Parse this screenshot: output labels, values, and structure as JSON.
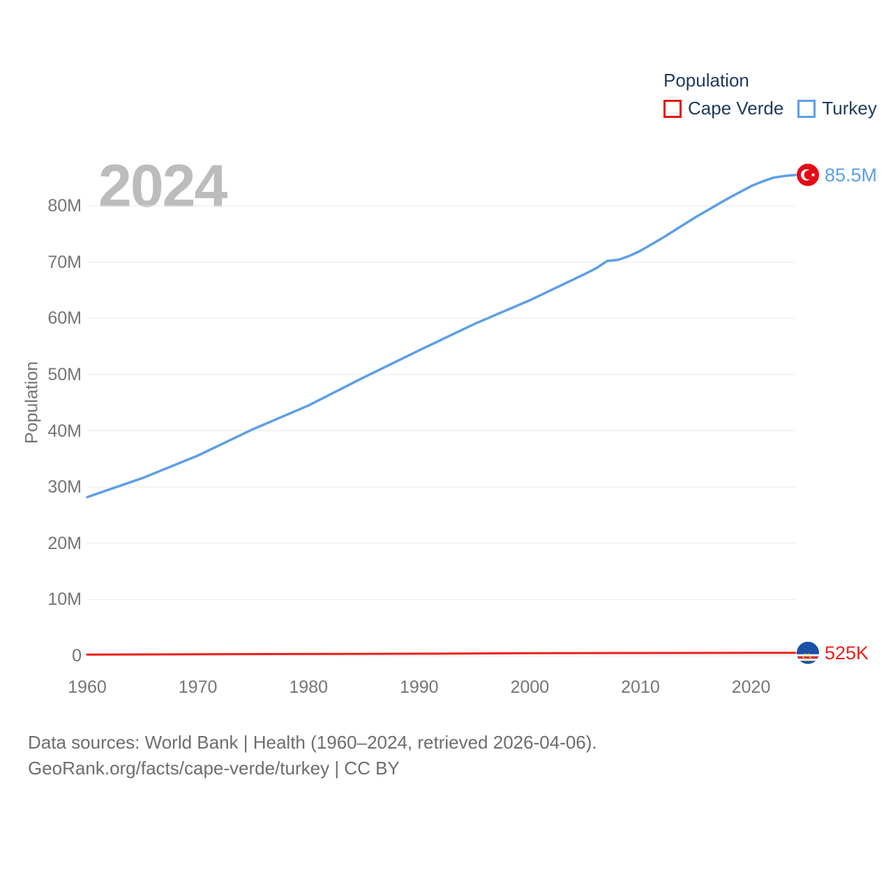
{
  "legend": {
    "title": "Population",
    "items": [
      {
        "label": "Cape Verde",
        "color": "#e3120b"
      },
      {
        "label": "Turkey",
        "color": "#5c9fe6"
      }
    ]
  },
  "watermark": "2024",
  "chart_data": {
    "type": "line",
    "title": "Population",
    "xlabel": "",
    "ylabel": "Population",
    "xlim": [
      1960,
      2024
    ],
    "ylim": [
      0,
      88000000
    ],
    "grid": "horizontal",
    "legend_position": "top-right",
    "x_ticks": [
      1960,
      1970,
      1980,
      1990,
      2000,
      2010,
      2020
    ],
    "y_ticks": [
      {
        "value": 0,
        "label": "0"
      },
      {
        "value": 10000000,
        "label": "10M"
      },
      {
        "value": 20000000,
        "label": "20M"
      },
      {
        "value": 30000000,
        "label": "30M"
      },
      {
        "value": 40000000,
        "label": "40M"
      },
      {
        "value": 50000000,
        "label": "50M"
      },
      {
        "value": 60000000,
        "label": "60M"
      },
      {
        "value": 70000000,
        "label": "70M"
      },
      {
        "value": 80000000,
        "label": "80M"
      }
    ],
    "series": [
      {
        "name": "Turkey",
        "color": "#5c9fe6",
        "line_width": 3.5,
        "flag_icon": "turkey-flag",
        "end_label": "85.5M",
        "end_value": 85500000,
        "x": [
          1960,
          1965,
          1970,
          1975,
          1980,
          1985,
          1990,
          1995,
          2000,
          2005,
          2006,
          2007,
          2008,
          2009,
          2010,
          2012,
          2015,
          2018,
          2020,
          2021,
          2022,
          2023,
          2024
        ],
        "y": [
          28200000,
          31600000,
          35600000,
          40300000,
          44500000,
          49500000,
          54300000,
          59000000,
          63200000,
          67900000,
          68900000,
          70200000,
          70400000,
          71100000,
          72000000,
          74300000,
          78000000,
          81400000,
          83500000,
          84300000,
          85000000,
          85300000,
          85500000
        ]
      },
      {
        "name": "Cape Verde",
        "color": "#ec201a",
        "line_width": 3,
        "flag_icon": "cape-verde-flag",
        "end_label": "525K",
        "end_value": 525000,
        "x": [
          1960,
          1970,
          1980,
          1990,
          2000,
          2010,
          2020,
          2024
        ],
        "y": [
          210000,
          270000,
          320000,
          370000,
          460000,
          500000,
          520000,
          525000
        ]
      }
    ]
  },
  "footer": {
    "line1": "Data sources: World Bank | Health (1960–2024, retrieved 2026-04-06).",
    "line2": "GeoRank.org/facts/cape-verde/turkey | CC BY"
  }
}
